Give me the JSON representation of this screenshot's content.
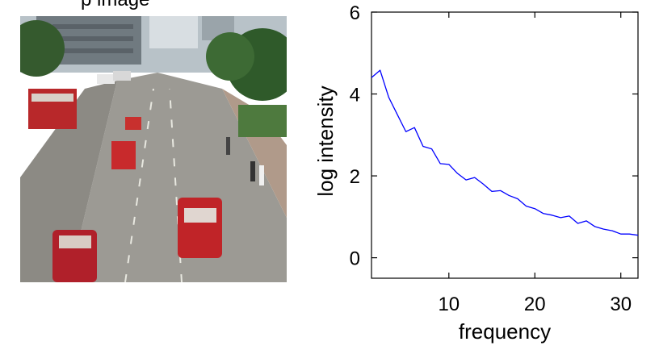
{
  "figure": {
    "photo_caption": "p image",
    "photo_icon": "street-photo"
  },
  "chart_data": {
    "type": "line",
    "xlabel": "frequency",
    "ylabel": "log intensity",
    "xlim": [
      1,
      32
    ],
    "ylim": [
      -0.5,
      6
    ],
    "xticks": [
      10,
      20,
      30
    ],
    "yticks": [
      0,
      2,
      4,
      6
    ],
    "grid": false,
    "series": [
      {
        "color": "#0000ff",
        "x": [
          1,
          2,
          3,
          4,
          5,
          6,
          7,
          8,
          9,
          10,
          11,
          12,
          13,
          14,
          15,
          16,
          17,
          18,
          19,
          20,
          21,
          22,
          23,
          24,
          25,
          26,
          27,
          28,
          29,
          30,
          31,
          32
        ],
        "y": [
          4.4,
          4.58,
          3.92,
          3.5,
          3.08,
          3.18,
          2.72,
          2.66,
          2.3,
          2.28,
          2.06,
          1.9,
          1.96,
          1.8,
          1.62,
          1.64,
          1.52,
          1.44,
          1.26,
          1.2,
          1.08,
          1.04,
          0.98,
          1.02,
          0.84,
          0.9,
          0.76,
          0.7,
          0.66,
          0.58,
          0.58,
          0.55
        ]
      }
    ]
  }
}
